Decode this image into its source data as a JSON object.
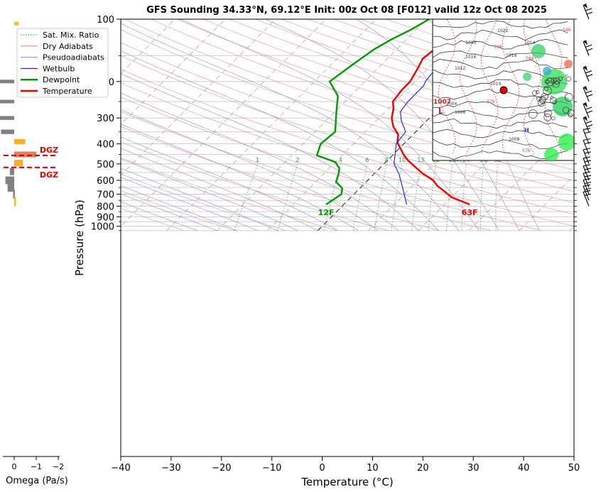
{
  "chart_data": {
    "type": "line",
    "title": "GFS Sounding 34.33°N, 69.12°E Init: 00z Oct 08 [F012] valid 12z Oct 08 2025",
    "xlabel": "Temperature (°C)",
    "ylabel": "Pressure (hPa)",
    "xlim": [
      -40,
      50
    ],
    "ylim": [
      1050,
      100
    ],
    "y_scale": "log",
    "x_ticks": [
      "−40",
      "−30",
      "−20",
      "−10",
      "0",
      "10",
      "20",
      "30",
      "40",
      "50"
    ],
    "y_ticks": [
      100,
      200,
      300,
      400,
      500,
      600,
      700,
      800,
      900,
      1000
    ],
    "legend": {
      "placement": "top-left",
      "entries": [
        {
          "label": "Sat. Mix. Ratio",
          "color": "#228b22",
          "style": "dotted"
        },
        {
          "label": "Dry Adiabats",
          "color": "#e08080",
          "style": "solid"
        },
        {
          "label": "Pseudoadiabats",
          "color": "#8888cc",
          "style": "solid"
        },
        {
          "label": "Wetbulb",
          "color": "#0000ff",
          "style": "solid"
        },
        {
          "label": "Dewpoint",
          "color": "#009900",
          "style": "bold"
        },
        {
          "label": "Temperature",
          "color": "#ee0000",
          "style": "bold"
        }
      ]
    },
    "series": [
      {
        "name": "Temperature",
        "color": "#ee0000",
        "points": [
          [
            25,
            785
          ],
          [
            20,
            725
          ],
          [
            17.5,
            680
          ],
          [
            15,
            640
          ],
          [
            13,
            600
          ],
          [
            9.5,
            555
          ],
          [
            7,
            520
          ],
          [
            4,
            480
          ],
          [
            2,
            450
          ],
          [
            0.5,
            425
          ],
          [
            -1.5,
            395
          ],
          [
            -3,
            360
          ],
          [
            -5.5,
            330
          ],
          [
            -7.5,
            300
          ],
          [
            -9,
            270
          ],
          [
            -10.5,
            250
          ],
          [
            -11,
            220
          ],
          [
            -11,
            200
          ],
          [
            -12,
            175
          ],
          [
            -13,
            155
          ],
          [
            -12.5,
            140
          ],
          [
            -11.5,
            125
          ],
          [
            -10.5,
            112
          ],
          [
            -10.5,
            100
          ]
        ]
      },
      {
        "name": "Dewpoint",
        "color": "#009900",
        "points": [
          [
            -3.5,
            785
          ],
          [
            -2.5,
            700
          ],
          [
            -3.5,
            655
          ],
          [
            -6,
            610
          ],
          [
            -7,
            560
          ],
          [
            -8,
            525
          ],
          [
            -10,
            490
          ],
          [
            -15,
            455
          ],
          [
            -16.5,
            400
          ],
          [
            -16,
            350
          ],
          [
            -20,
            275
          ],
          [
            -22.5,
            235
          ],
          [
            -27,
            200
          ],
          [
            -25.5,
            160
          ],
          [
            -24.5,
            140
          ],
          [
            -23,
            125
          ],
          [
            -21,
            112
          ],
          [
            -19.5,
            100
          ]
        ]
      },
      {
        "name": "Wetbulb",
        "color": "#0000ff",
        "points": [
          [
            12.5,
            785
          ],
          [
            8,
            640
          ],
          [
            5,
            560
          ],
          [
            2,
            500
          ],
          [
            -1.5,
            400
          ],
          [
            -2,
            350
          ],
          [
            -5,
            310
          ],
          [
            -7,
            280
          ],
          [
            -7.5,
            250
          ],
          [
            -7.5,
            210
          ],
          [
            -8,
            200
          ],
          [
            -8.5,
            170
          ],
          [
            -9,
            155
          ],
          [
            -8.5,
            140
          ],
          [
            -7.5,
            125
          ],
          [
            -6.5,
            112
          ],
          [
            -5,
            100
          ]
        ]
      }
    ],
    "surface_labels": {
      "temperature": "63F",
      "dewpoint": "12F"
    },
    "mixing_ratio_labels": [
      "1",
      "2",
      "4",
      "6",
      "8",
      "10",
      "13",
      "16",
      "20",
      "24",
      "30",
      "36"
    ],
    "omega": {
      "xlabel": "Omega (Pa/s)",
      "ticks": [
        "0",
        "−1",
        "−2"
      ],
      "bars": [
        {
          "p": 105,
          "v": -0.2,
          "color": "#f0c020"
        },
        {
          "p": 200,
          "v": 0.8,
          "color": "#808080"
        },
        {
          "p": 250,
          "v": 0.8,
          "color": "#808080"
        },
        {
          "p": 300,
          "v": 0.7,
          "color": "#808080"
        },
        {
          "p": 350,
          "v": 0.6,
          "color": "#808080"
        },
        {
          "p": 390,
          "v": -0.5,
          "color": "#f5b030"
        },
        {
          "p": 450,
          "v": -1.0,
          "color": "#d88060"
        },
        {
          "p": 495,
          "v": -0.4,
          "color": "#f5b030"
        },
        {
          "p": 545,
          "v": 0.2,
          "color": "#808080"
        },
        {
          "p": 600,
          "v": 0.4,
          "color": "#808080"
        },
        {
          "p": 650,
          "v": 0.3,
          "color": "#808080"
        },
        {
          "p": 700,
          "v": 0.05,
          "color": "#808080"
        },
        {
          "p": 760,
          "v": -0.05,
          "color": "#f0c020"
        }
      ],
      "dgz_label": "DGZ",
      "dgz_levels": [
        455,
        520
      ]
    },
    "wind_barbs": {
      "levels_hpa": [
        100,
        150,
        200,
        250,
        300,
        350,
        400,
        450,
        500,
        550,
        600,
        650,
        700,
        750,
        800
      ]
    },
    "inset_map": {
      "isobar_labels": [
        "1022",
        "1020",
        "1018",
        "1016",
        "1014",
        "1012",
        "1010",
        "1008",
        "1006",
        "1004"
      ],
      "thickness_labels": [
        "546",
        "558",
        "564",
        "570",
        "576"
      ],
      "high_label": "H",
      "low_label": "L",
      "low_value": "1007",
      "site_marker_color": "#ee0000"
    }
  }
}
